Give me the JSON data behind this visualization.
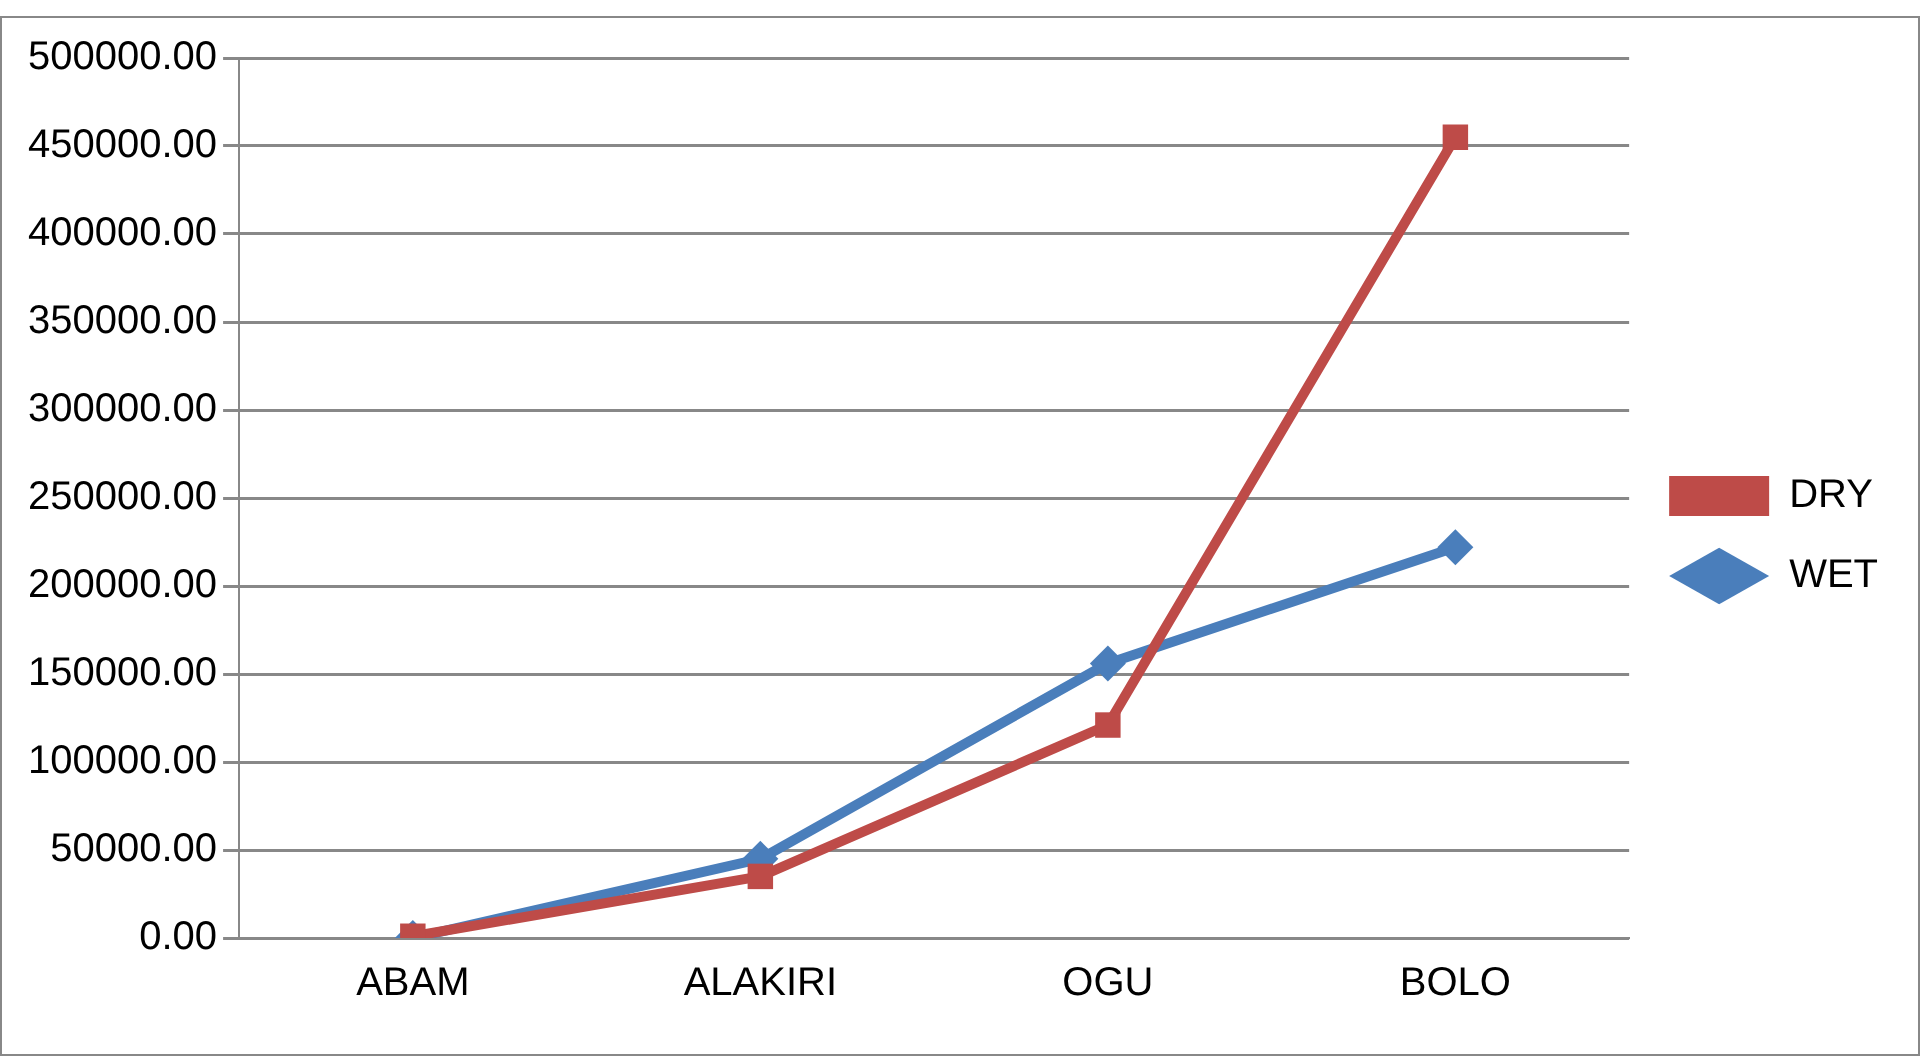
{
  "chart_data": {
    "type": "line",
    "categories": [
      "ABAM",
      "ALAKIRI",
      "OGU",
      "BOLO"
    ],
    "series": [
      {
        "name": "WET",
        "color": "#4a7ebb",
        "marker": "diamond",
        "values": [
          0,
          45000,
          156000,
          222000
        ]
      },
      {
        "name": "DRY",
        "color": "#be4b48",
        "marker": "square",
        "values": [
          1000,
          35000,
          121000,
          455000
        ]
      }
    ],
    "ylim": [
      0,
      500000
    ],
    "yticks": [
      {
        "value": 0,
        "label": "0.00"
      },
      {
        "value": 50000,
        "label": "50000.00"
      },
      {
        "value": 100000,
        "label": "100000.00"
      },
      {
        "value": 150000,
        "label": "150000.00"
      },
      {
        "value": 200000,
        "label": "200000.00"
      },
      {
        "value": 250000,
        "label": "250000.00"
      },
      {
        "value": 300000,
        "label": "300000.00"
      },
      {
        "value": 350000,
        "label": "350000.00"
      },
      {
        "value": 400000,
        "label": "400000.00"
      },
      {
        "value": 450000,
        "label": "450000.00"
      },
      {
        "value": 500000,
        "label": "500000.00"
      }
    ],
    "grid": "y",
    "legend": "right",
    "line_style": "solid"
  }
}
